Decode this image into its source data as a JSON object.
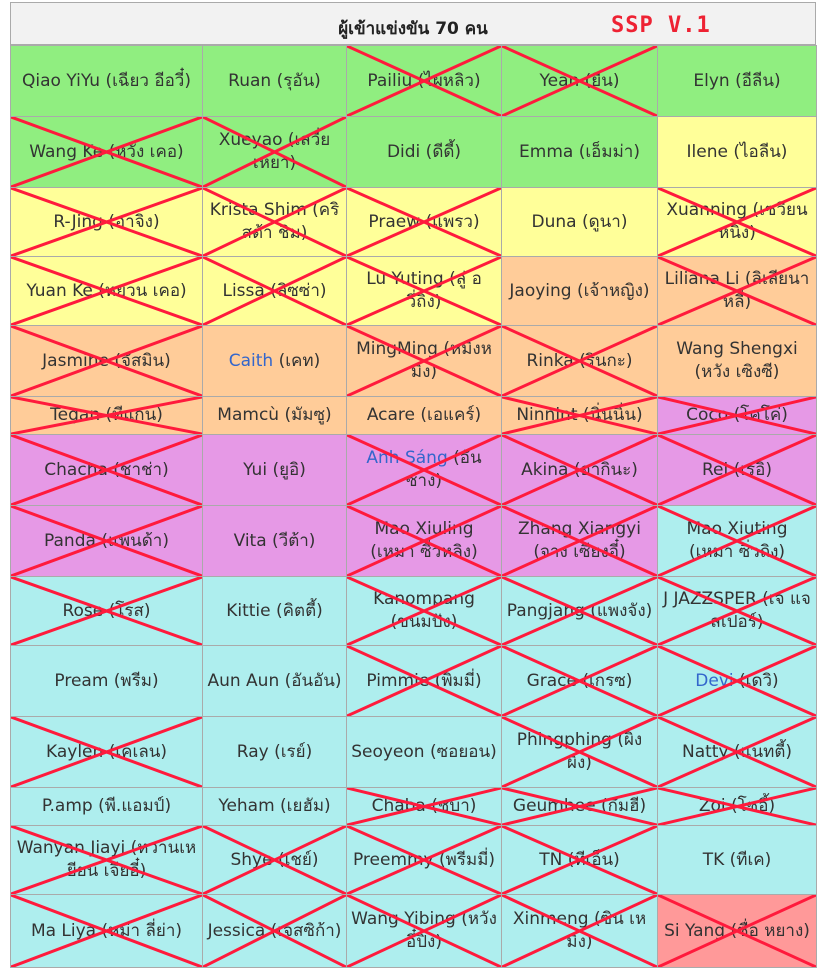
{
  "header": {
    "title": "ผู้เข้าแข่งขัน 70 คน",
    "badge": "SSP V.1"
  },
  "table": {
    "rows": [
      [
        {
          "name": "Qiao YiYu (เฉียว อีอวี๋)",
          "color": "green",
          "crossed": false
        },
        {
          "name": "Ruan (รุอัน)",
          "color": "green",
          "crossed": false
        },
        {
          "name": "Pailiu (ไผหลิว)",
          "color": "green",
          "crossed": true
        },
        {
          "name": "Yean (ยีน)",
          "color": "green",
          "crossed": true
        },
        {
          "name": "Elyn (อีลีน)",
          "color": "green",
          "crossed": false
        }
      ],
      [
        {
          "name": "Wang Ke (หวัง เคอ)",
          "color": "green",
          "crossed": true
        },
        {
          "name": "Xueyao (เสวี่ยเหยา)",
          "color": "green",
          "crossed": true
        },
        {
          "name": "Didi (ดีดี้)",
          "color": "green",
          "crossed": false
        },
        {
          "name": "Emma (เอ็มม่า)",
          "color": "green",
          "crossed": false
        },
        {
          "name": "Ilene (ไอลีน)",
          "color": "yellow",
          "crossed": false
        }
      ],
      [
        {
          "name": "R-Jing (อาจิง)",
          "color": "yellow",
          "crossed": true
        },
        {
          "name": "Krista Shim (คริสต้า ชิม)",
          "color": "yellow",
          "crossed": true
        },
        {
          "name": "Praew (แพรว)",
          "color": "yellow",
          "crossed": true
        },
        {
          "name": "Duna (ดูนา)",
          "color": "yellow",
          "crossed": false
        },
        {
          "name": "Xuanning (เซวียนหนิง)",
          "color": "yellow",
          "crossed": true
        }
      ],
      [
        {
          "name": "Yuan Ke (หยวน เคอ)",
          "color": "yellow",
          "crossed": true
        },
        {
          "name": "Lissa (ลิซซ่า)",
          "color": "yellow",
          "crossed": true
        },
        {
          "name": "Lu Yuting (ลู่ อวี่ถิง)",
          "color": "yellow",
          "crossed": true
        },
        {
          "name": "Jaoying (เจ้าหญิง)",
          "color": "orange",
          "crossed": false
        },
        {
          "name": "Liliana Li (ลิเลียนา หลี่)",
          "color": "orange",
          "crossed": true
        }
      ],
      [
        {
          "name": "Jasmine (จัสมิน)",
          "color": "orange",
          "crossed": true
        },
        {
          "link": "Caith",
          "name": "(เคท)",
          "color": "orange",
          "crossed": false
        },
        {
          "name": "MingMing (หมิงหมิง)",
          "color": "orange",
          "crossed": true
        },
        {
          "name": "Rinka (รินกะ)",
          "color": "orange",
          "crossed": true
        },
        {
          "name": "Wang Shengxi (หวัง เซิงซี)",
          "color": "orange",
          "crossed": false
        }
      ],
      [
        {
          "name": "Tegan (ทีแกน)",
          "color": "orange",
          "crossed": true
        },
        {
          "name": "Mamcù (มัมซู)",
          "color": "orange",
          "crossed": false
        },
        {
          "name": "Acare (เอแคร์)",
          "color": "orange",
          "crossed": false
        },
        {
          "name": "Ninnint (นิ่นนิ่น)",
          "color": "orange",
          "crossed": true
        },
        {
          "name": "Coco (โคโค่)",
          "color": "purple",
          "crossed": true
        }
      ],
      [
        {
          "name": "Chacha (ชาช่า)",
          "color": "purple",
          "crossed": true
        },
        {
          "name": "Yui (ยูอิ)",
          "color": "purple",
          "crossed": false
        },
        {
          "link": "Anh Sáng",
          "name": "(อันซาง)",
          "color": "purple",
          "crossed": true
        },
        {
          "name": "Akina (อากินะ)",
          "color": "purple",
          "crossed": true
        },
        {
          "name": "Rei (เรอิ)",
          "color": "purple",
          "crossed": true
        }
      ],
      [
        {
          "name": "Panda (แพนด้า)",
          "color": "purple",
          "crossed": true
        },
        {
          "name": "Vita (วีต้า)",
          "color": "purple",
          "crossed": false
        },
        {
          "name": "Mao Xiuling (เหมา ซิ่วหลิง)",
          "color": "purple",
          "crossed": true
        },
        {
          "name": "Zhang Xiangyi (จาง เซียงอี๋)",
          "color": "purple",
          "crossed": true
        },
        {
          "name": "Mao Xiuting (เหมา ซิ่วถิง)",
          "color": "cyan",
          "crossed": true
        }
      ],
      [
        {
          "name": "Rose (โรส)",
          "color": "cyan",
          "crossed": true
        },
        {
          "name": "Kittie (คิตตี้)",
          "color": "cyan",
          "crossed": false
        },
        {
          "name": "Kanompang (ขนมปัง)",
          "color": "cyan",
          "crossed": true
        },
        {
          "name": "Pangjang (แพงจัง)",
          "color": "cyan",
          "crossed": true
        },
        {
          "name": "J JAZZSPER (เจ แจสเปอร์)",
          "color": "cyan",
          "crossed": true
        }
      ],
      [
        {
          "name": "Pream (พรีม)",
          "color": "cyan",
          "crossed": false
        },
        {
          "name": "Aun Aun (อันอัน)",
          "color": "cyan",
          "crossed": false
        },
        {
          "name": "Pimmie (พิมมี่)",
          "color": "cyan",
          "crossed": true
        },
        {
          "name": "Grace (เกรซ)",
          "color": "cyan",
          "crossed": true
        },
        {
          "link": "Devi",
          "name": "(เดวิ)",
          "color": "cyan",
          "crossed": true
        }
      ],
      [
        {
          "name": "Kaylen (เคเลน)",
          "color": "cyan",
          "crossed": true
        },
        {
          "name": "Ray (เรย์)",
          "color": "cyan",
          "crossed": false
        },
        {
          "name": "Seoyeon (ซอยอน)",
          "color": "cyan",
          "crossed": false
        },
        {
          "name": "Phingphing (ผิงผิง)",
          "color": "cyan",
          "crossed": true
        },
        {
          "name": "Natty (แนทตี้)",
          "color": "cyan",
          "crossed": true
        }
      ],
      [
        {
          "name": "P.amp (พี.แอมป์)",
          "color": "cyan",
          "crossed": false
        },
        {
          "name": "Yeham (เยฮัม)",
          "color": "cyan",
          "crossed": false
        },
        {
          "name": "Chaba (ชบา)",
          "color": "cyan",
          "crossed": true
        },
        {
          "name": "Geumhee (กึมฮี)",
          "color": "cyan",
          "crossed": true
        },
        {
          "name": "Zoi (โซอี้)",
          "color": "cyan",
          "crossed": true
        }
      ],
      [
        {
          "name": "Wanyan Jiayi (หวานเหยียน เจียอี๋)",
          "color": "cyan",
          "crossed": true
        },
        {
          "name": "Shye (เชย์)",
          "color": "cyan",
          "crossed": true
        },
        {
          "name": "Preemmy (พรีมมี่)",
          "color": "cyan",
          "crossed": true
        },
        {
          "name": "TN (ทีเอ็น)",
          "color": "cyan",
          "crossed": true
        },
        {
          "name": "TK (ทีเค)",
          "color": "cyan",
          "crossed": false
        }
      ],
      [
        {
          "name": "Ma Liya (หม่า ลี่ย่า)",
          "color": "cyan",
          "crossed": true
        },
        {
          "name": "Jessica (เจสซิก้า)",
          "color": "cyan",
          "crossed": true
        },
        {
          "name": "Wang Yibing (หวัง อี๋ปิง)",
          "color": "cyan",
          "crossed": true
        },
        {
          "name": "Xinmeng (ซิน เหมิง)",
          "color": "cyan",
          "crossed": true
        },
        {
          "name": "Si Yang (ซื่อ หยาง)",
          "color": "pink",
          "crossed": true
        }
      ]
    ]
  }
}
